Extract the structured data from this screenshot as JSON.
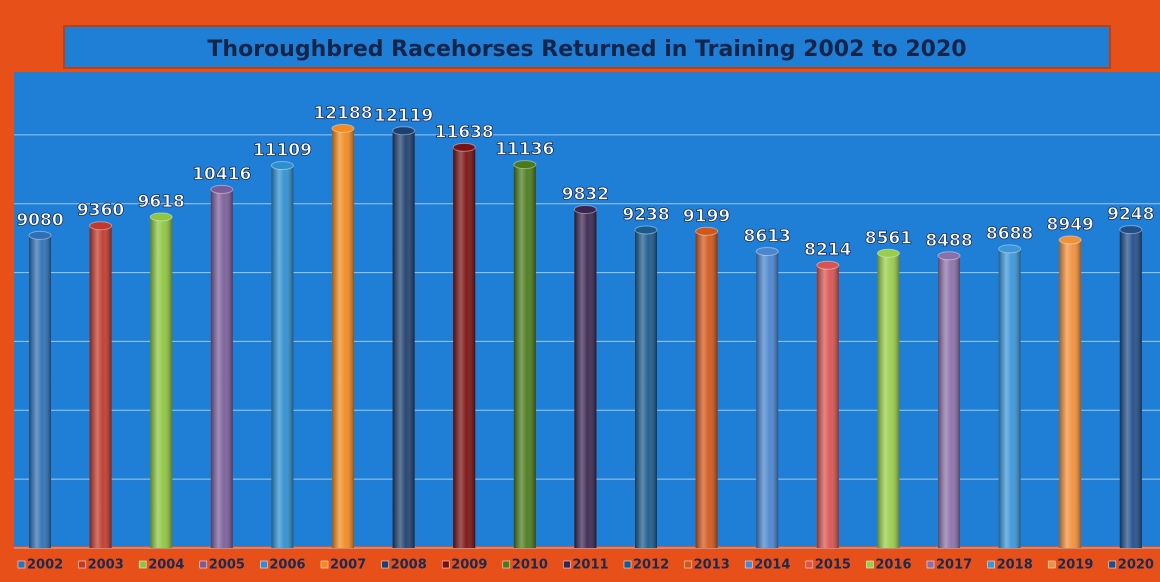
{
  "chart_data": {
    "type": "bar",
    "title": "Thoroughbred Racehorses Returned in Training 2002 to 2020",
    "categories": [
      "2002",
      "2003",
      "2004",
      "2005",
      "2006",
      "2007",
      "2008",
      "2009",
      "2010",
      "2011",
      "2012",
      "2013",
      "2014",
      "2015",
      "2016",
      "2017",
      "2018",
      "2019",
      "2020"
    ],
    "values": [
      9080,
      9360,
      9618,
      10416,
      11109,
      12188,
      12119,
      11638,
      11136,
      9832,
      9238,
      9199,
      8613,
      8214,
      8561,
      8488,
      8688,
      8949,
      9248
    ],
    "colors": [
      "#2e6fb5",
      "#c0392b",
      "#8dc63f",
      "#7a5c99",
      "#2e8fd0",
      "#f28a1e",
      "#1f3f6e",
      "#7a1010",
      "#4a7a1a",
      "#3a2550",
      "#1a5a8a",
      "#d0561a",
      "#4a85d0",
      "#d9534f",
      "#9acd4a",
      "#8a70a8",
      "#3a96d8",
      "#f2903a",
      "#1f4e8a"
    ],
    "ylim": [
      0,
      14000
    ],
    "yticks": [
      0,
      2000,
      4000,
      6000,
      8000,
      10000,
      12000,
      14000
    ],
    "grid": true
  }
}
